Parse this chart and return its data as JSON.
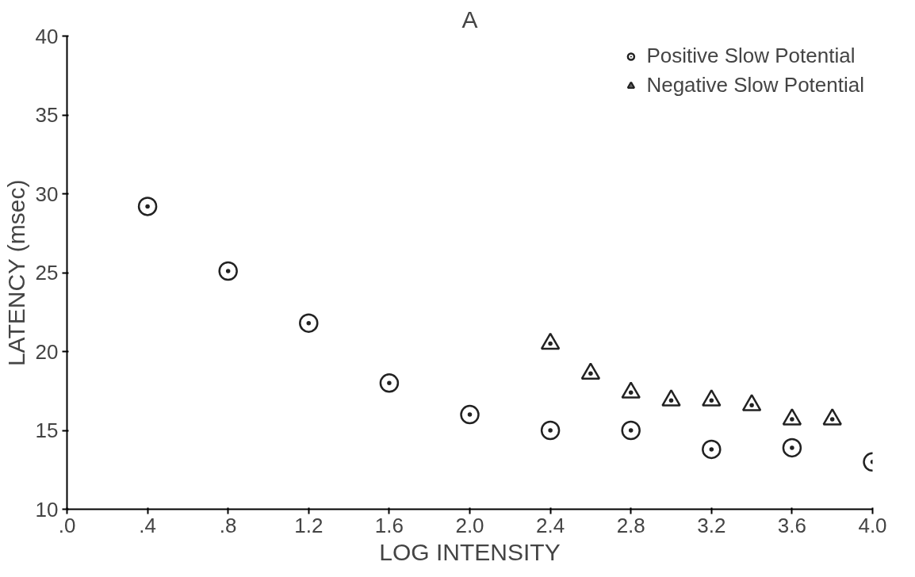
{
  "chart_data": {
    "type": "scatter",
    "title": "A",
    "xlabel": "LOG INTENSITY",
    "ylabel": "LATENCY (msec)",
    "xlim": [
      0,
      4.0
    ],
    "ylim": [
      10,
      40
    ],
    "xticks": [
      {
        "value": 0,
        "label": ".0"
      },
      {
        "value": 0.4,
        "label": ".4"
      },
      {
        "value": 0.8,
        "label": ".8"
      },
      1.2,
      1.6,
      {
        "value": 2.0,
        "label": "2.0"
      },
      2.4,
      2.8,
      3.2,
      3.6,
      {
        "value": 4.0,
        "label": "4.0"
      }
    ],
    "yticks": [
      10,
      15,
      20,
      25,
      30,
      35,
      40
    ],
    "grid": false,
    "legend": "top right",
    "series": [
      {
        "name": "Positive Slow Potential",
        "color": "#222222",
        "marker": "circle",
        "x": [
          0.4,
          0.8,
          1.2,
          1.6,
          2.0,
          2.4,
          2.8,
          3.2,
          3.6,
          4.0
        ],
        "values": [
          29.2,
          25.1,
          21.8,
          18.0,
          16.0,
          15.0,
          15.0,
          13.8,
          13.9,
          13.0
        ]
      },
      {
        "name": "Negative Slow Potential",
        "color": "#222222",
        "marker": "triangle",
        "x": [
          2.4,
          2.6,
          2.8,
          3.0,
          3.2,
          3.4,
          3.6,
          3.8
        ],
        "values": [
          20.5,
          18.6,
          17.4,
          16.9,
          16.9,
          16.6,
          15.7,
          15.7
        ]
      }
    ]
  }
}
